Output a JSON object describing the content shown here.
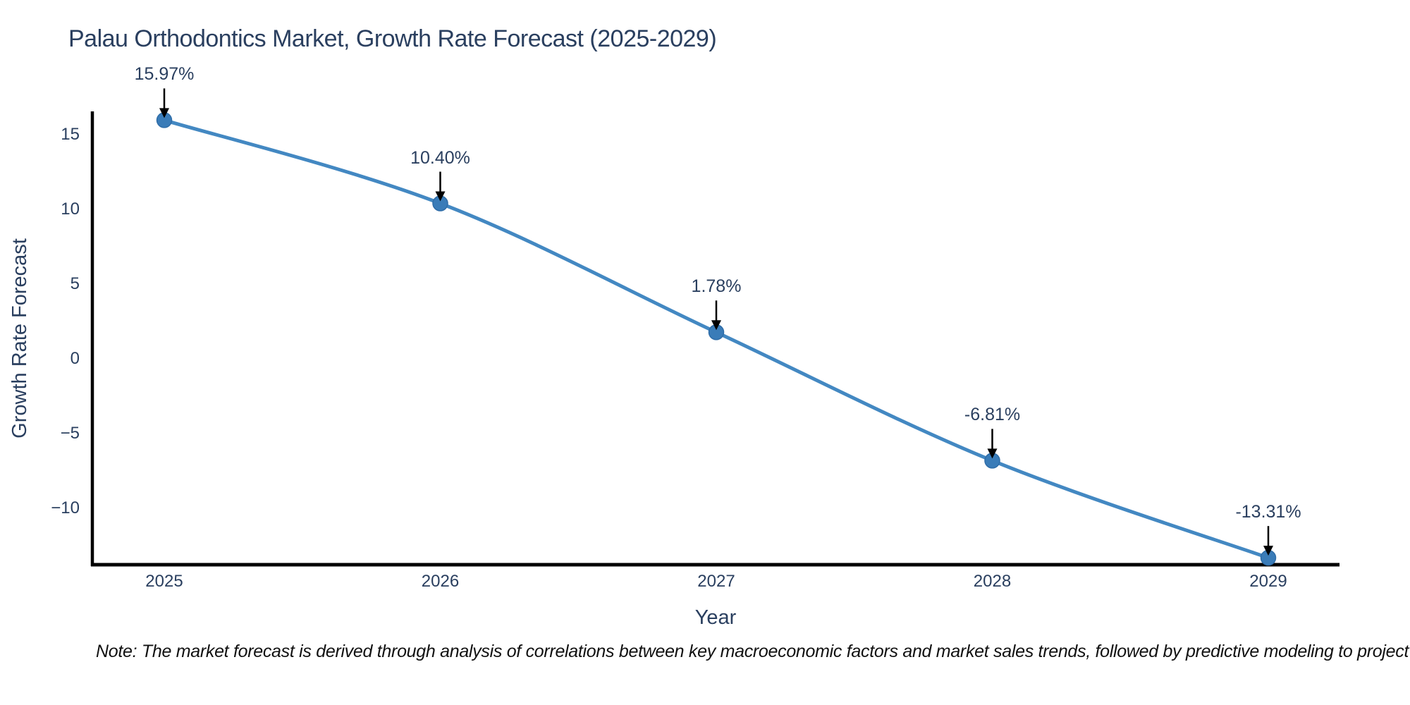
{
  "note": "Note: The market forecast is derived through analysis of correlations between key macroeconomic factors and market sales trends, followed by predictive modeling to project future sales",
  "chart_data": {
    "type": "line",
    "title": "Palau Orthodontics Market, Growth Rate Forecast (2025-2029)",
    "xlabel": "Year",
    "ylabel": "Growth Rate Forecast",
    "x": [
      2025,
      2026,
      2027,
      2028,
      2029
    ],
    "series": [
      {
        "name": "Growth Rate Forecast",
        "values": [
          15.97,
          10.4,
          1.78,
          -6.81,
          -13.31
        ]
      }
    ],
    "point_labels": [
      "15.97%",
      "10.40%",
      "1.78%",
      "-6.81%",
      "-13.31%"
    ],
    "yticks": [
      15,
      10,
      5,
      0,
      -5,
      -10
    ],
    "xlim": [
      2024.74,
      2029.26
    ],
    "ylim": [
      -13.8,
      16.6
    ],
    "line_shape": "spline",
    "grid": false,
    "legend_position": "none",
    "annotations_have_arrows": true,
    "colors": {
      "line": "#4388c2",
      "marker": "#3a7cb8",
      "marker_edge": "#2f6da8",
      "axis": "#000000",
      "text": "#2a3f5f",
      "annotation_arrow": "#000000",
      "note_text": "#111111",
      "background": "#ffffff"
    }
  }
}
